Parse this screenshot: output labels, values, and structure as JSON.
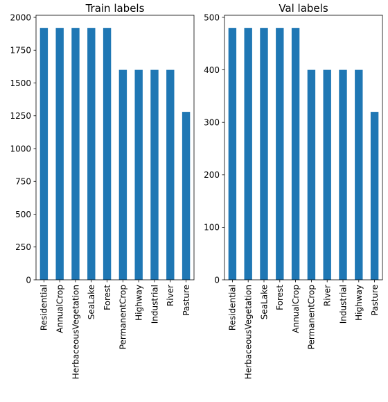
{
  "chart_data": [
    {
      "type": "bar",
      "title": "Train labels",
      "categories": [
        "Residential",
        "AnnualCrop",
        "HerbaceousVegetation",
        "SeaLake",
        "Forest",
        "PermanentCrop",
        "Highway",
        "Industrial",
        "River",
        "Pasture"
      ],
      "values": [
        1920,
        1920,
        1920,
        1920,
        1920,
        1600,
        1600,
        1600,
        1600,
        1280
      ],
      "ylim": [
        0,
        2016
      ],
      "yticks": [
        0,
        250,
        500,
        750,
        1000,
        1250,
        1500,
        1750,
        2000
      ],
      "xlabel": "",
      "ylabel": "",
      "color": "#1f77b4",
      "grid": false
    },
    {
      "type": "bar",
      "title": "Val labels",
      "categories": [
        "Residential",
        "HerbaceousVegetation",
        "SeaLake",
        "Forest",
        "AnnualCrop",
        "PermanentCrop",
        "River",
        "Industrial",
        "Highway",
        "Pasture"
      ],
      "values": [
        480,
        480,
        480,
        480,
        480,
        400,
        400,
        400,
        400,
        320
      ],
      "ylim": [
        0,
        504
      ],
      "yticks": [
        0,
        100,
        200,
        300,
        400,
        500
      ],
      "xlabel": "",
      "ylabel": "",
      "color": "#1f77b4",
      "grid": false
    }
  ]
}
